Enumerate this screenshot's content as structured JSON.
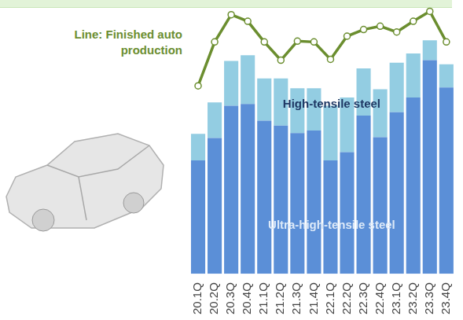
{
  "chart_data": {
    "type": "bar",
    "stacked": true,
    "categories": [
      "20.1Q",
      "20.2Q",
      "20.3Q",
      "20.4Q",
      "21.1Q",
      "21.2Q",
      "21.3Q",
      "21.4Q",
      "22.1Q",
      "22.2Q",
      "22.3Q",
      "22.4Q",
      "23.1Q",
      "23.2Q",
      "23.3Q",
      "23.4Q"
    ],
    "series": [
      {
        "name": "Ultra-high-tensile steel",
        "type": "bar",
        "color": "#5b8fd7",
        "values": [
          137,
          164,
          203,
          205,
          185,
          179,
          170,
          173,
          137,
          147,
          191,
          165,
          195,
          213,
          258,
          225
        ]
      },
      {
        "name": "High-tensile steel",
        "type": "bar",
        "color": "#93cde2",
        "values": [
          32,
          43,
          54,
          59,
          51,
          57,
          54,
          51,
          66,
          66,
          57,
          58,
          60,
          53,
          24,
          28
        ]
      },
      {
        "name": "Line: Finished auto production",
        "type": "line",
        "axis": "y2",
        "color": "#6b8e2f",
        "marker": "circle",
        "values": [
          302,
          355,
          388,
          380,
          355,
          333,
          356,
          355,
          334,
          362,
          370,
          374,
          367,
          380,
          392,
          355
        ]
      }
    ],
    "ylim": [
      0,
      325
    ],
    "y2lim": [
      75,
      400
    ],
    "grid": false,
    "tick_labels": "x"
  }
}
